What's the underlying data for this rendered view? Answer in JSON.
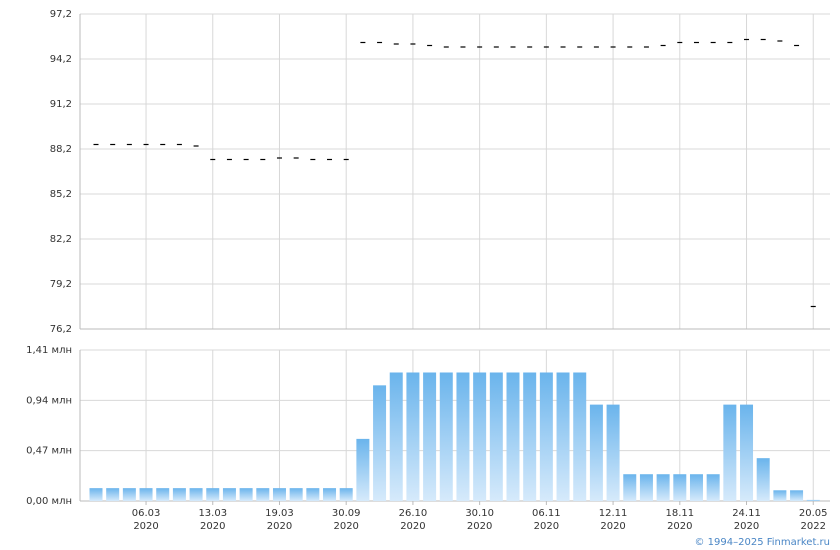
{
  "chart_data": [
    {
      "type": "dash",
      "values": [
        88.5,
        88.5,
        88.5,
        88.5,
        88.5,
        88.5,
        88.4,
        87.5,
        87.5,
        87.5,
        87.5,
        87.6,
        87.6,
        87.5,
        87.5,
        87.5,
        95.3,
        95.3,
        95.2,
        95.2,
        95.1,
        95.0,
        95.0,
        95.0,
        95.0,
        95.0,
        95.0,
        95.0,
        95.0,
        95.0,
        95.0,
        95.0,
        95.0,
        95.0,
        95.1,
        95.3,
        95.3,
        95.3,
        95.3,
        95.5,
        95.5,
        95.4,
        95.1,
        77.7
      ],
      "color": "#000000",
      "ylim": [
        76.2,
        97.2
      ],
      "yticks": [
        {
          "value": 76.2,
          "label": "76,2"
        },
        {
          "value": 79.2,
          "label": "79,2"
        },
        {
          "value": 82.2,
          "label": "82,2"
        },
        {
          "value": 85.2,
          "label": "85,2"
        },
        {
          "value": 88.2,
          "label": "88,2"
        },
        {
          "value": 91.2,
          "label": "91,2"
        },
        {
          "value": 94.2,
          "label": "94,2"
        },
        {
          "value": 97.2,
          "label": "97,2"
        }
      ],
      "grid": true
    },
    {
      "type": "bar",
      "categories": [
        null,
        null,
        null,
        "06.03",
        null,
        null,
        null,
        "13.03",
        null,
        null,
        null,
        "19.03",
        null,
        null,
        null,
        "30.09",
        null,
        null,
        null,
        "26.10",
        null,
        null,
        null,
        "30.10",
        null,
        null,
        null,
        "06.11",
        null,
        null,
        null,
        "12.11",
        null,
        null,
        null,
        "18.11",
        null,
        null,
        null,
        "24.11",
        null,
        null,
        null,
        "20.05"
      ],
      "category_years": [
        null,
        null,
        null,
        "2020",
        null,
        null,
        null,
        "2020",
        null,
        null,
        null,
        "2020",
        null,
        null,
        null,
        "2020",
        null,
        null,
        null,
        "2020",
        null,
        null,
        null,
        "2020",
        null,
        null,
        null,
        "2020",
        null,
        null,
        null,
        "2020",
        null,
        null,
        null,
        "2020",
        null,
        null,
        null,
        "2020",
        null,
        null,
        null,
        "2022"
      ],
      "values": [
        0.12,
        0.12,
        0.12,
        0.12,
        0.12,
        0.12,
        0.12,
        0.12,
        0.12,
        0.12,
        0.12,
        0.12,
        0.12,
        0.12,
        0.12,
        0.12,
        0.58,
        1.08,
        1.2,
        1.2,
        1.2,
        1.2,
        1.2,
        1.2,
        1.2,
        1.2,
        1.2,
        1.2,
        1.2,
        1.2,
        0.9,
        0.9,
        0.25,
        0.25,
        0.25,
        0.25,
        0.25,
        0.25,
        0.9,
        0.9,
        0.4,
        0.1,
        0.1,
        0.01
      ],
      "color": "#6ab4ec",
      "ylim": [
        0,
        1.41
      ],
      "yticks": [
        {
          "value": 0,
          "label": "0,00 млн"
        },
        {
          "value": 0.47,
          "label": "0,47 млн"
        },
        {
          "value": 0.94,
          "label": "0,94 млн"
        },
        {
          "value": 1.41,
          "label": "1,41 млн"
        }
      ],
      "grid": true
    }
  ],
  "footer": "© 1994–2025 Finmarket.ru"
}
